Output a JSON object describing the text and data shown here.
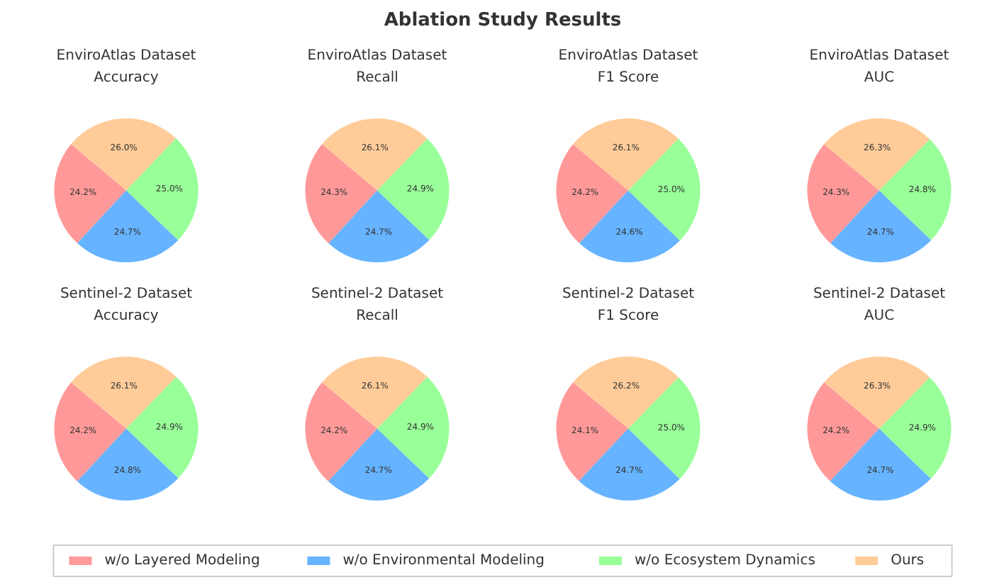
{
  "chart_data": [
    {
      "type": "pie",
      "title": "EnviroAtlas Dataset\nAccuracy",
      "annotations": [
        "Ablation Study Results"
      ],
      "legend": "bottom",
      "categories": [
        "w/o Layered Modeling",
        "w/o Environmental Modeling",
        "w/o Ecosystem Dynamics",
        "Ours"
      ],
      "values": [
        24.2,
        24.7,
        25.0,
        26.0
      ],
      "value_labels": [
        "24.2%",
        "24.7%",
        "25.0%",
        "26.0%"
      ],
      "colors": [
        "#ff9999",
        "#66b3ff",
        "#99ff99",
        "#ffcc99"
      ]
    },
    {
      "type": "pie",
      "title": "EnviroAtlas Dataset\nRecall",
      "values": [
        24.3,
        24.7,
        24.9,
        26.1
      ],
      "value_labels": [
        "24.3%",
        "24.7%",
        "24.9%",
        "26.1%"
      ],
      "colors": [
        "#ff9999",
        "#66b3ff",
        "#99ff99",
        "#ffcc99"
      ]
    },
    {
      "type": "pie",
      "title": "EnviroAtlas Dataset\nF1 Score",
      "values": [
        24.2,
        24.6,
        25.0,
        26.1
      ],
      "value_labels": [
        "24.2%",
        "24.6%",
        "25.0%",
        "26.1%"
      ],
      "colors": [
        "#ff9999",
        "#66b3ff",
        "#99ff99",
        "#ffcc99"
      ]
    },
    {
      "type": "pie",
      "title": "EnviroAtlas Dataset\nAUC",
      "values": [
        24.3,
        24.7,
        24.8,
        26.3
      ],
      "value_labels": [
        "24.3%",
        "24.7%",
        "24.8%",
        "26.3%"
      ],
      "colors": [
        "#ff9999",
        "#66b3ff",
        "#99ff99",
        "#ffcc99"
      ]
    },
    {
      "type": "pie",
      "title": "Sentinel-2 Dataset\nAccuracy",
      "values": [
        24.2,
        24.8,
        24.9,
        26.1
      ],
      "value_labels": [
        "24.2%",
        "24.8%",
        "24.9%",
        "26.1%"
      ],
      "colors": [
        "#ff9999",
        "#66b3ff",
        "#99ff99",
        "#ffcc99"
      ]
    },
    {
      "type": "pie",
      "title": "Sentinel-2 Dataset\nRecall",
      "values": [
        24.2,
        24.7,
        24.9,
        26.1
      ],
      "value_labels": [
        "24.2%",
        "24.7%",
        "24.9%",
        "26.1%"
      ],
      "colors": [
        "#ff9999",
        "#66b3ff",
        "#99ff99",
        "#ffcc99"
      ]
    },
    {
      "type": "pie",
      "title": "Sentinel-2 Dataset\nF1 Score",
      "values": [
        24.1,
        24.7,
        25.0,
        26.2
      ],
      "value_labels": [
        "24.1%",
        "24.7%",
        "25.0%",
        "26.2%"
      ],
      "colors": [
        "#ff9999",
        "#66b3ff",
        "#99ff99",
        "#ffcc99"
      ]
    },
    {
      "type": "pie",
      "title": "Sentinel-2 Dataset\nAUC",
      "values": [
        24.2,
        24.7,
        24.9,
        26.3
      ],
      "value_labels": [
        "24.2%",
        "24.7%",
        "24.9%",
        "26.3%"
      ],
      "colors": [
        "#ff9999",
        "#66b3ff",
        "#99ff99",
        "#ffcc99"
      ]
    }
  ]
}
